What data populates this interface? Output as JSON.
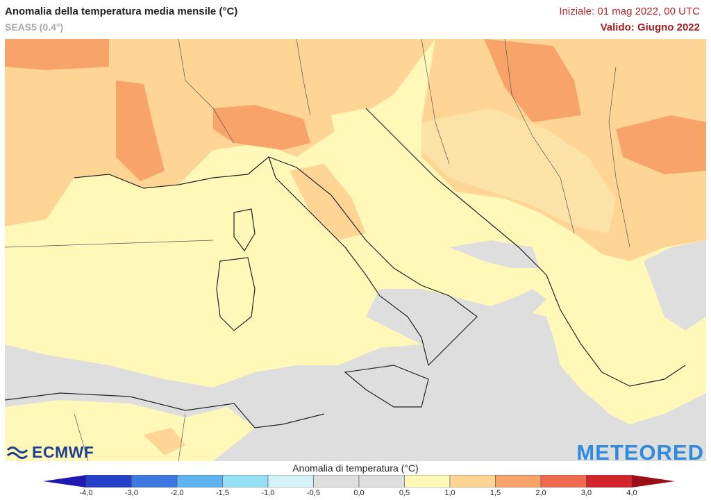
{
  "header": {
    "title": "Anomalia della temperatura media mensile (°C)",
    "subtitle": "SEAS5 (0.4°)",
    "initial": "Iniziale: 01 mag 2022, 00 UTC",
    "valid": "Valido: Giugno 2022"
  },
  "logos": {
    "left": "ECMWF",
    "right": "METEORED"
  },
  "legend": {
    "title": "Anomalia di temperatura (°C)",
    "ticks": [
      "-4,0",
      "-3,0",
      "-2,0",
      "-1,5",
      "-1,0",
      "-0,5",
      "0,0",
      "0,5",
      "1,0",
      "1,5",
      "2,0",
      "3,0",
      "4,0"
    ],
    "colors": [
      "#2540c8",
      "#3d78e0",
      "#5fb4ef",
      "#95e0f5",
      "#d4f3f8",
      "#dedede",
      "#dedede",
      "#fff8b8",
      "#ffd595",
      "#f8a36a",
      "#ee6b4f",
      "#d4242c"
    ],
    "under_color": "#2018b0",
    "over_color": "#9a0e18"
  }
}
